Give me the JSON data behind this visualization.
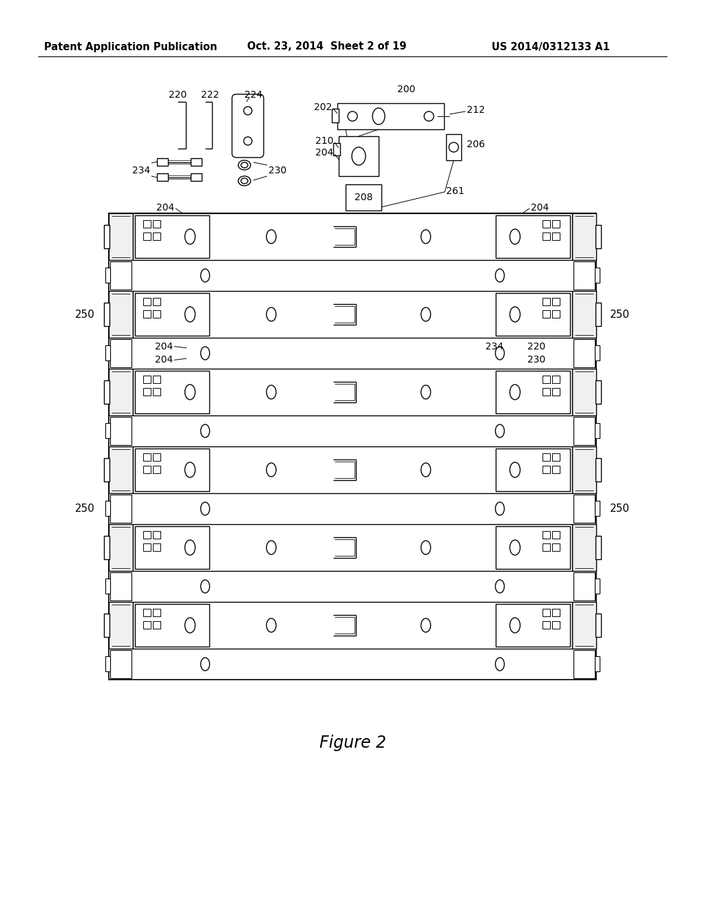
{
  "title_left": "Patent Application Publication",
  "title_mid": "Oct. 23, 2014  Sheet 2 of 19",
  "title_right": "US 2014/0312133 A1",
  "figure_label": "Figure 2",
  "bg_color": "#ffffff",
  "line_color": "#000000",
  "lw": 1.0,
  "header_fontsize": 10.5,
  "label_fontsize": 10,
  "fig_label_fontsize": 17
}
